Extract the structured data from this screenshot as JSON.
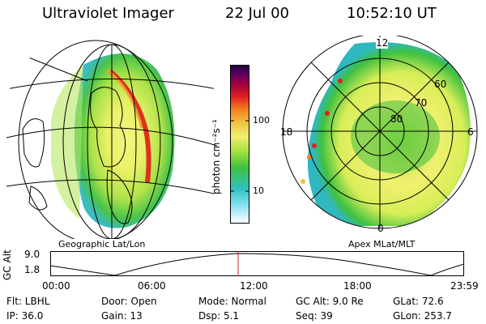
{
  "header": {
    "title": "Ultraviolet Imager",
    "date": "22 Jul 00",
    "time": "10:52:10 UT"
  },
  "panels": {
    "left_caption": "Geographic Lat/Lon",
    "right_caption": "Apex MLat/MLT"
  },
  "colorbar": {
    "label": "photon cm⁻²s⁻¹",
    "ticks": [
      "100",
      "10"
    ],
    "colors": [
      "#ffffff",
      "#7fe0f0",
      "#30c0c0",
      "#40c040",
      "#a0e040",
      "#f0f070",
      "#f0c040",
      "#f08020",
      "#e02020",
      "#a00040",
      "#600060",
      "#200040"
    ]
  },
  "polar": {
    "mlt_labels": {
      "top": "12",
      "left": "18",
      "right": "6",
      "bottom": "0"
    },
    "mlat_labels": [
      "60",
      "70",
      "80"
    ]
  },
  "altitude_plot": {
    "ylabel": "GC Alt",
    "ytick": "9.0",
    "ytick2": "1.8",
    "xticks": [
      "00:00",
      "06:00",
      "12:00",
      "18:00",
      "23:59"
    ],
    "marker_fraction": 0.454
  },
  "info": {
    "row1": {
      "flt": "Flt: LBHL",
      "door": "Door: Open",
      "mode": "Mode: Normal",
      "gcalt": "GC Alt: 9.0 Re",
      "glat": "GLat:  72.6"
    },
    "row2": {
      "ip": "IP: 36.0",
      "gain": "Gain: 13",
      "dsp": "Dsp:    5.1",
      "seq": "Seq: 39",
      "glon": "GLon: 253.7"
    }
  }
}
